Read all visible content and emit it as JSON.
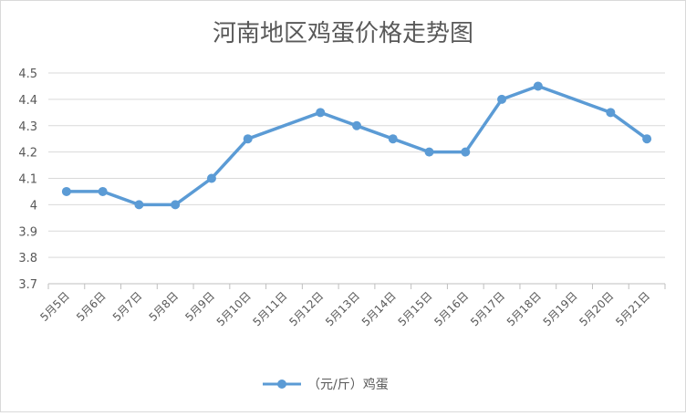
{
  "chart_data": {
    "type": "line",
    "title": "河南地区鸡蛋价格走势图",
    "xlabel": "",
    "ylabel": "",
    "categories": [
      "5月5日",
      "5月6日",
      "5月7日",
      "5月8日",
      "5月9日",
      "5月10日",
      "5月11日",
      "5月12日",
      "5月13日",
      "5月14日",
      "5月15日",
      "5月16日",
      "5月17日",
      "5月18日",
      "5月19日",
      "5月20日",
      "5月21日"
    ],
    "series": [
      {
        "name": "（元/斤）鸡蛋",
        "color": "#5b9bd5",
        "values": [
          4.05,
          4.05,
          4.0,
          4.0,
          4.1,
          4.25,
          null,
          4.35,
          4.3,
          4.25,
          4.2,
          4.2,
          4.4,
          4.45,
          null,
          4.35,
          4.25
        ]
      }
    ],
    "ylim": [
      3.7,
      4.5
    ],
    "yticks": [
      "3.7",
      "3.8",
      "3.9",
      "4",
      "4.1",
      "4.2",
      "4.3",
      "4.4",
      "4.5"
    ],
    "grid": true,
    "legend": "bottom",
    "gap_mode": "connect"
  }
}
